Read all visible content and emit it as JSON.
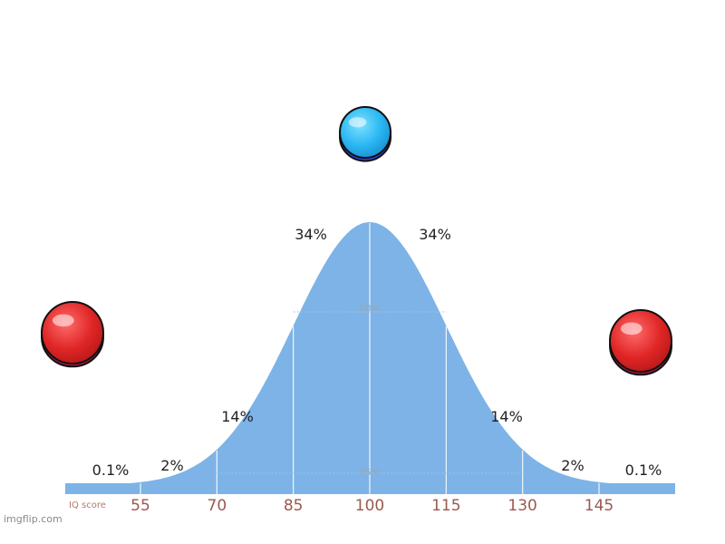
{
  "chart_data": {
    "type": "area",
    "xlabel": "IQ score",
    "ticks": [
      55,
      70,
      85,
      100,
      115,
      130,
      145
    ],
    "mean": 100,
    "sd": 15,
    "segment_labels": [
      {
        "x": 52,
        "label": "0.1%"
      },
      {
        "x": 62.5,
        "label": "2%"
      },
      {
        "x": 77.5,
        "label": "14%"
      },
      {
        "x": 92.5,
        "label": "34%"
      },
      {
        "x": 107.5,
        "label": "34%"
      },
      {
        "x": 122.5,
        "label": "14%"
      },
      {
        "x": 137.5,
        "label": "2%"
      },
      {
        "x": 148,
        "label": "0.1%"
      }
    ],
    "bands": [
      {
        "label": "68%",
        "from": 85,
        "to": 115
      },
      {
        "label": "95%",
        "from": 70,
        "to": 130
      }
    ]
  },
  "decorations": {
    "blue_ball": {
      "color": "#29b6f2",
      "x": 100
    },
    "red_balls": [
      {
        "color": "#e02626",
        "x": 55
      },
      {
        "color": "#e02626",
        "x": 145
      }
    ]
  },
  "watermark": "imgflip.com",
  "colors": {
    "curve": "#7db3e6",
    "ticks": "#9a5a4e"
  }
}
